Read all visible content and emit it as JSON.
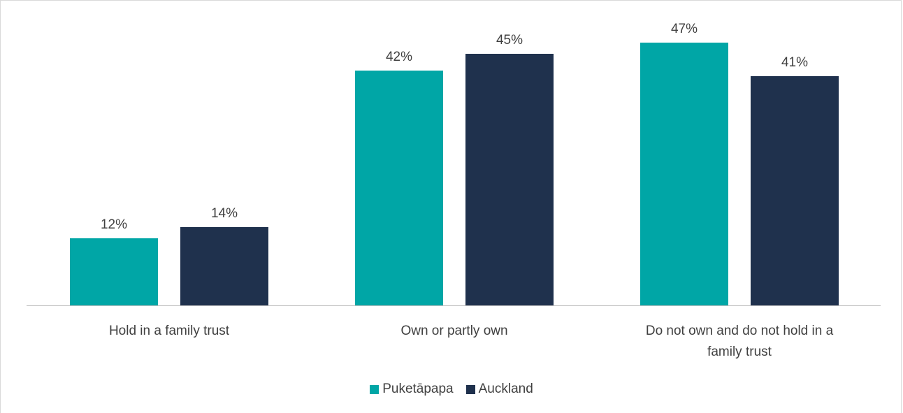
{
  "chart_data": {
    "type": "bar",
    "categories": [
      "Hold in a family trust",
      "Own or partly own",
      "Do not own and do not hold in a family trust"
    ],
    "category_lines": [
      [
        "Hold in a family trust"
      ],
      [
        "Own or partly own"
      ],
      [
        "Do not own and do not hold in a",
        "family trust"
      ]
    ],
    "series": [
      {
        "name": "Puketāpapa",
        "values": [
          12,
          42,
          47
        ],
        "labels": [
          "12%",
          "42%",
          "47%"
        ],
        "color": "#00A6A6"
      },
      {
        "name": "Auckland",
        "values": [
          14,
          45,
          41
        ],
        "labels": [
          "14%",
          "45%",
          "41%"
        ],
        "color": "#1F314D"
      }
    ],
    "unit": "%",
    "ylim": [
      0,
      50
    ],
    "grid": false,
    "legend_position": "bottom"
  }
}
